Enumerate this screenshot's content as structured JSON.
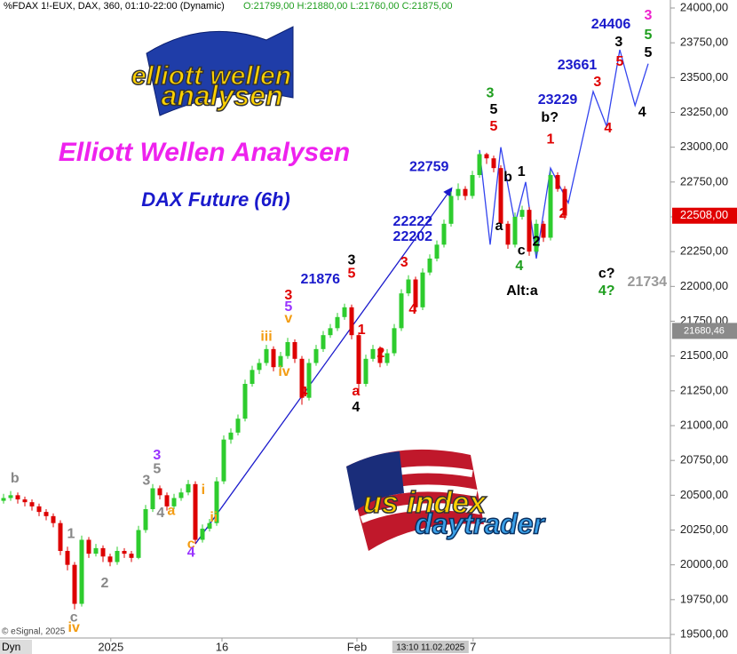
{
  "chart_data": {
    "type": "candlestick",
    "header": "%FDAX 1!-EUX, DAX, 360, 01:10-22:00 (Dynamic)",
    "ohlc_text": "O:21799,00 H:21880,00 L:21760,00 C:21875,00",
    "title": "Elliott Wellen Analysen",
    "subtitle": "DAX Future (6h)",
    "logos": [
      "elliott wellen",
      "analysen",
      "us index",
      "daytrader"
    ],
    "source": "© eSignal, 2025",
    "range_label": "Dyn",
    "cursor_label": {
      "value": 60.1,
      "label": "13:10 11.02.2025"
    },
    "up_color": "#2ecc2e",
    "down_color": "#dd0000",
    "xlim": [
      -0.5,
      93.875
    ],
    "ylim": [
      19500,
      24000
    ],
    "xticks": [
      {
        "value": 15.1,
        "label": "2025"
      },
      {
        "value": 30.75,
        "label": "16"
      },
      {
        "value": 49.75,
        "label": "Feb"
      },
      {
        "value": 66.1,
        "label": "7"
      }
    ],
    "yticks": [
      {
        "value": 19500,
        "label": "19500,00"
      },
      {
        "value": 19750,
        "label": "19750,00"
      },
      {
        "value": 20000,
        "label": "20000,00"
      },
      {
        "value": 20250,
        "label": "20250,00"
      },
      {
        "value": 20500,
        "label": "20500,00"
      },
      {
        "value": 20750,
        "label": "20750,00"
      },
      {
        "value": 21000,
        "label": "21000,00"
      },
      {
        "value": 21250,
        "label": "21250,00"
      },
      {
        "value": 21500,
        "label": "21500,00"
      },
      {
        "value": 21750,
        "label": "21750,00"
      },
      {
        "value": 22000,
        "label": "22000,00"
      },
      {
        "value": 22250,
        "label": "22250,00"
      },
      {
        "value": 22500,
        "label": "22500,00"
      },
      {
        "value": 22750,
        "label": "22750,00"
      },
      {
        "value": 23000,
        "label": "23000,00"
      },
      {
        "value": 23250,
        "label": "23250,00"
      },
      {
        "value": 23500,
        "label": "23500,00"
      },
      {
        "value": 23750,
        "label": "23750,00"
      },
      {
        "value": 24000,
        "label": "24000,00"
      }
    ],
    "price_labels": [
      {
        "value": 22508,
        "label": "22508,00",
        "color": "#e00000"
      },
      {
        "value": 21680.46,
        "label": "21680,46",
        "color": "#8a8a8a"
      }
    ],
    "ohlc": [
      [
        20460,
        20510,
        20440,
        20480
      ],
      [
        20480,
        20530,
        20460,
        20500
      ],
      [
        20500,
        20520,
        20440,
        20470
      ],
      [
        20470,
        20490,
        20420,
        20450
      ],
      [
        20450,
        20470,
        20390,
        20420
      ],
      [
        20420,
        20440,
        20350,
        20380
      ],
      [
        20380,
        20400,
        20320,
        20350
      ],
      [
        20350,
        20370,
        20270,
        20300
      ],
      [
        20300,
        20320,
        20070,
        20100
      ],
      [
        20100,
        20130,
        19960,
        20000
      ],
      [
        20000,
        20020,
        19680,
        19720
      ],
      [
        19720,
        20210,
        19700,
        20180
      ],
      [
        20180,
        20200,
        20050,
        20080
      ],
      [
        20080,
        20150,
        20060,
        20120
      ],
      [
        20120,
        20140,
        20020,
        20060
      ],
      [
        20060,
        20080,
        19990,
        20020
      ],
      [
        20020,
        20130,
        20000,
        20100
      ],
      [
        20100,
        20120,
        20050,
        20080
      ],
      [
        20080,
        20100,
        20020,
        20050
      ],
      [
        20050,
        20280,
        20040,
        20250
      ],
      [
        20250,
        20430,
        20230,
        20400
      ],
      [
        20400,
        20580,
        20380,
        20550
      ],
      [
        20550,
        20570,
        20470,
        20500
      ],
      [
        20500,
        20520,
        20390,
        20420
      ],
      [
        20420,
        20510,
        20400,
        20480
      ],
      [
        20480,
        20550,
        20460,
        20520
      ],
      [
        20520,
        20610,
        20500,
        20580
      ],
      [
        20580,
        20600,
        20150,
        20180
      ],
      [
        20180,
        20290,
        20160,
        20260
      ],
      [
        20260,
        20330,
        20240,
        20300
      ],
      [
        20300,
        20630,
        20280,
        20600
      ],
      [
        20600,
        20930,
        20580,
        20900
      ],
      [
        20900,
        20980,
        20870,
        20950
      ],
      [
        20950,
        21080,
        20930,
        21050
      ],
      [
        21050,
        21330,
        21030,
        21300
      ],
      [
        21300,
        21430,
        21280,
        21400
      ],
      [
        21400,
        21480,
        21370,
        21450
      ],
      [
        21450,
        21580,
        21430,
        21550
      ],
      [
        21550,
        21570,
        21390,
        21420
      ],
      [
        21420,
        21530,
        21400,
        21500
      ],
      [
        21500,
        21630,
        21480,
        21600
      ],
      [
        21600,
        21620,
        21450,
        21480
      ],
      [
        21480,
        21500,
        21150,
        21200
      ],
      [
        21200,
        21480,
        21180,
        21450
      ],
      [
        21450,
        21580,
        21430,
        21550
      ],
      [
        21550,
        21680,
        21530,
        21650
      ],
      [
        21650,
        21730,
        21630,
        21700
      ],
      [
        21700,
        21810,
        21680,
        21780
      ],
      [
        21780,
        21876,
        21760,
        21850
      ],
      [
        21850,
        21870,
        21620,
        21650
      ],
      [
        21650,
        21670,
        21220,
        21300
      ],
      [
        21300,
        21510,
        21280,
        21480
      ],
      [
        21480,
        21580,
        21460,
        21550
      ],
      [
        21550,
        21570,
        21420,
        21450
      ],
      [
        21450,
        21550,
        21430,
        21520
      ],
      [
        21520,
        21730,
        21500,
        21700
      ],
      [
        21700,
        21980,
        21680,
        21950
      ],
      [
        21950,
        22080,
        21930,
        22050
      ],
      [
        22050,
        22070,
        21820,
        21850
      ],
      [
        21850,
        22130,
        21830,
        22100
      ],
      [
        22100,
        22230,
        22080,
        22200
      ],
      [
        22200,
        22330,
        22180,
        22300
      ],
      [
        22300,
        22480,
        22280,
        22450
      ],
      [
        22450,
        22680,
        22430,
        22650
      ],
      [
        22650,
        22740,
        22620,
        22700
      ],
      [
        22700,
        22720,
        22620,
        22650
      ],
      [
        22650,
        22830,
        22630,
        22800
      ],
      [
        22800,
        22960,
        22780,
        22950
      ],
      [
        22950,
        22960,
        22880,
        22920
      ],
      [
        22920,
        22940,
        22820,
        22850
      ],
      [
        22850,
        22870,
        22420,
        22450
      ],
      [
        22450,
        22470,
        22270,
        22300
      ],
      [
        22300,
        22530,
        22280,
        22500
      ],
      [
        22500,
        22580,
        22480,
        22550
      ],
      [
        22550,
        22570,
        22220,
        22250
      ],
      [
        22250,
        22480,
        22230,
        22450
      ],
      [
        22450,
        22470,
        22320,
        22350
      ],
      [
        22350,
        22830,
        22330,
        22800
      ],
      [
        22800,
        22820,
        22680,
        22700
      ],
      [
        22700,
        22720,
        22480,
        22508
      ]
    ],
    "lines": [
      {
        "color": "#1a1acc",
        "x": [
          27,
          63
        ],
        "y": [
          20150,
          22700
        ]
      },
      {
        "color": "#3344ee",
        "x": [
          67,
          68.5,
          70,
          72,
          73.5,
          75,
          77,
          79.5,
          83,
          84.9,
          86.75,
          88.9,
          90.75
        ],
        "y": [
          22980,
          22300,
          23000,
          22450,
          22750,
          22200,
          22850,
          22600,
          23400,
          23150,
          23700,
          23300,
          23600
        ]
      }
    ],
    "annotations": [
      {
        "text": "b",
        "color": "#888888",
        "x": 1.6,
        "y": 20620
      },
      {
        "text": "1",
        "color": "#888888",
        "x": 9.5,
        "y": 20220
      },
      {
        "text": "c",
        "color": "#888888",
        "x": 9.9,
        "y": 19620
      },
      {
        "text": "iv",
        "color": "#f39c12",
        "x": 9.9,
        "y": 19545
      },
      {
        "text": "2",
        "color": "#888888",
        "x": 14.25,
        "y": 19864
      },
      {
        "text": "3",
        "color": "#888888",
        "x": 20.1,
        "y": 20604
      },
      {
        "text": "4",
        "color": "#888888",
        "x": 22.1,
        "y": 20368
      },
      {
        "text": "3",
        "color": "#9933ff",
        "x": 21.6,
        "y": 20783
      },
      {
        "text": "5",
        "color": "#888888",
        "x": 21.6,
        "y": 20687
      },
      {
        "text": "a",
        "color": "#f39c12",
        "x": 23.6,
        "y": 20387
      },
      {
        "text": "c",
        "color": "#f39c12",
        "x": 26.4,
        "y": 20145
      },
      {
        "text": "4",
        "color": "#9933ff",
        "x": 26.4,
        "y": 20087
      },
      {
        "text": "i",
        "color": "#f39c12",
        "x": 28.1,
        "y": 20534
      },
      {
        "text": "ii",
        "color": "#f39c12",
        "x": 29.6,
        "y": 20336
      },
      {
        "text": "iii",
        "color": "#f39c12",
        "x": 37,
        "y": 21638
      },
      {
        "text": "iv",
        "color": "#f39c12",
        "x": 39.5,
        "y": 21383
      },
      {
        "text": "3",
        "color": "#e00000",
        "x": 40.1,
        "y": 21932
      },
      {
        "text": "5",
        "color": "#9933ff",
        "x": 40.1,
        "y": 21849
      },
      {
        "text": "v",
        "color": "#f39c12",
        "x": 40.1,
        "y": 21766
      },
      {
        "text": "4",
        "color": "#e00000",
        "x": 42.25,
        "y": 21236
      },
      {
        "text": "21876",
        "color": "#1a1acc",
        "x": 44.6,
        "y": 22047
      },
      {
        "text": "3",
        "color": "#000000",
        "x": 49,
        "y": 22187
      },
      {
        "text": "5",
        "color": "#e00000",
        "x": 49,
        "y": 22091
      },
      {
        "text": "1",
        "color": "#e00000",
        "x": 50.4,
        "y": 21683
      },
      {
        "text": "2",
        "color": "#e00000",
        "x": 53.1,
        "y": 21517
      },
      {
        "text": "a",
        "color": "#e00000",
        "x": 49.6,
        "y": 21243
      },
      {
        "text": "4",
        "color": "#000000",
        "x": 49.6,
        "y": 21128
      },
      {
        "text": "3",
        "color": "#e00000",
        "x": 56.4,
        "y": 22168
      },
      {
        "text": "4",
        "color": "#e00000",
        "x": 57.6,
        "y": 21830
      },
      {
        "text": "22222",
        "color": "#1a1acc",
        "x": 57.6,
        "y": 22462
      },
      {
        "text": "22202",
        "color": "#1a1acc",
        "x": 57.6,
        "y": 22353
      },
      {
        "text": "22759",
        "color": "#1a1acc",
        "x": 59.9,
        "y": 22857
      },
      {
        "text": "3",
        "color": "#1e9e1e",
        "x": 68.5,
        "y": 23387
      },
      {
        "text": "5",
        "color": "#000000",
        "x": 69,
        "y": 23266
      },
      {
        "text": "5",
        "color": "#e00000",
        "x": 69,
        "y": 23145
      },
      {
        "text": "b",
        "color": "#000000",
        "x": 71,
        "y": 22781
      },
      {
        "text": "1",
        "color": "#000000",
        "x": 72.9,
        "y": 22819
      },
      {
        "text": "a",
        "color": "#000000",
        "x": 69.75,
        "y": 22430
      },
      {
        "text": "c",
        "color": "#000000",
        "x": 72.9,
        "y": 22257
      },
      {
        "text": "4",
        "color": "#1e9e1e",
        "x": 72.6,
        "y": 22143
      },
      {
        "text": "2",
        "color": "#000000",
        "x": 75,
        "y": 22321
      },
      {
        "text": "Alt:a",
        "color": "#000000",
        "x": 73,
        "y": 21964
      },
      {
        "text": "23229",
        "color": "#1a1acc",
        "x": 78,
        "y": 23336
      },
      {
        "text": "b?",
        "color": "#000000",
        "x": 76.9,
        "y": 23209
      },
      {
        "text": "1",
        "color": "#e00000",
        "x": 77,
        "y": 23055
      },
      {
        "text": "2",
        "color": "#e00000",
        "x": 78.75,
        "y": 22519
      },
      {
        "text": "23661",
        "color": "#1a1acc",
        "x": 80.75,
        "y": 23585
      },
      {
        "text": "3",
        "color": "#e00000",
        "x": 83.6,
        "y": 23464
      },
      {
        "text": "4",
        "color": "#e00000",
        "x": 85.1,
        "y": 23132
      },
      {
        "text": "5",
        "color": "#e00000",
        "x": 86.75,
        "y": 23611
      },
      {
        "text": "24406",
        "color": "#1a1acc",
        "x": 85.5,
        "y": 23879
      },
      {
        "text": "3",
        "color": "#000000",
        "x": 86.6,
        "y": 23751
      },
      {
        "text": "3",
        "color": "#ee22cc",
        "x": 90.75,
        "y": 23943
      },
      {
        "text": "5",
        "color": "#1e9e1e",
        "x": 90.75,
        "y": 23802
      },
      {
        "text": "5",
        "color": "#000000",
        "x": 90.75,
        "y": 23675
      },
      {
        "text": "4",
        "color": "#000000",
        "x": 89.9,
        "y": 23247
      },
      {
        "text": "c?",
        "color": "#000000",
        "x": 84.9,
        "y": 22091
      },
      {
        "text": "4?",
        "color": "#1e9e1e",
        "x": 84.9,
        "y": 21964
      },
      {
        "text": "21734",
        "color": "#999999",
        "x": 90.6,
        "y": 22028
      }
    ]
  }
}
